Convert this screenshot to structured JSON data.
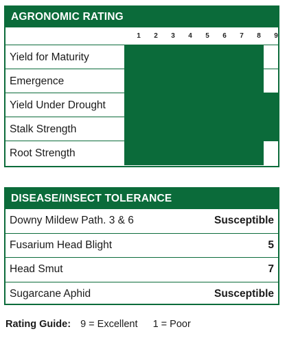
{
  "agronomic": {
    "title": "AGRONOMIC RATING",
    "scale": [
      "1",
      "2",
      "3",
      "4",
      "5",
      "6",
      "7",
      "8",
      "9"
    ],
    "scale_max": 9,
    "traits": [
      {
        "label": "Yield for Maturity",
        "rating": 8
      },
      {
        "label": "Emergence",
        "rating": 8
      },
      {
        "label": "Yield Under Drought",
        "rating": 9
      },
      {
        "label": "Stalk Strength",
        "rating": 9
      },
      {
        "label": "Root Strength",
        "rating": 8
      }
    ],
    "bar_color": "#0b6b3a"
  },
  "disease": {
    "title": "DISEASE/INSECT TOLERANCE",
    "rows": [
      {
        "label": "Downy Mildew Path. 3 & 6",
        "value": "Susceptible"
      },
      {
        "label": "Fusarium Head Blight",
        "value": "5"
      },
      {
        "label": "Head Smut",
        "value": "7"
      },
      {
        "label": "Sugarcane Aphid",
        "value": "Susceptible"
      }
    ]
  },
  "guide": {
    "title": "Rating Guide:",
    "high": "9 = Excellent",
    "low": "1 = Poor"
  }
}
